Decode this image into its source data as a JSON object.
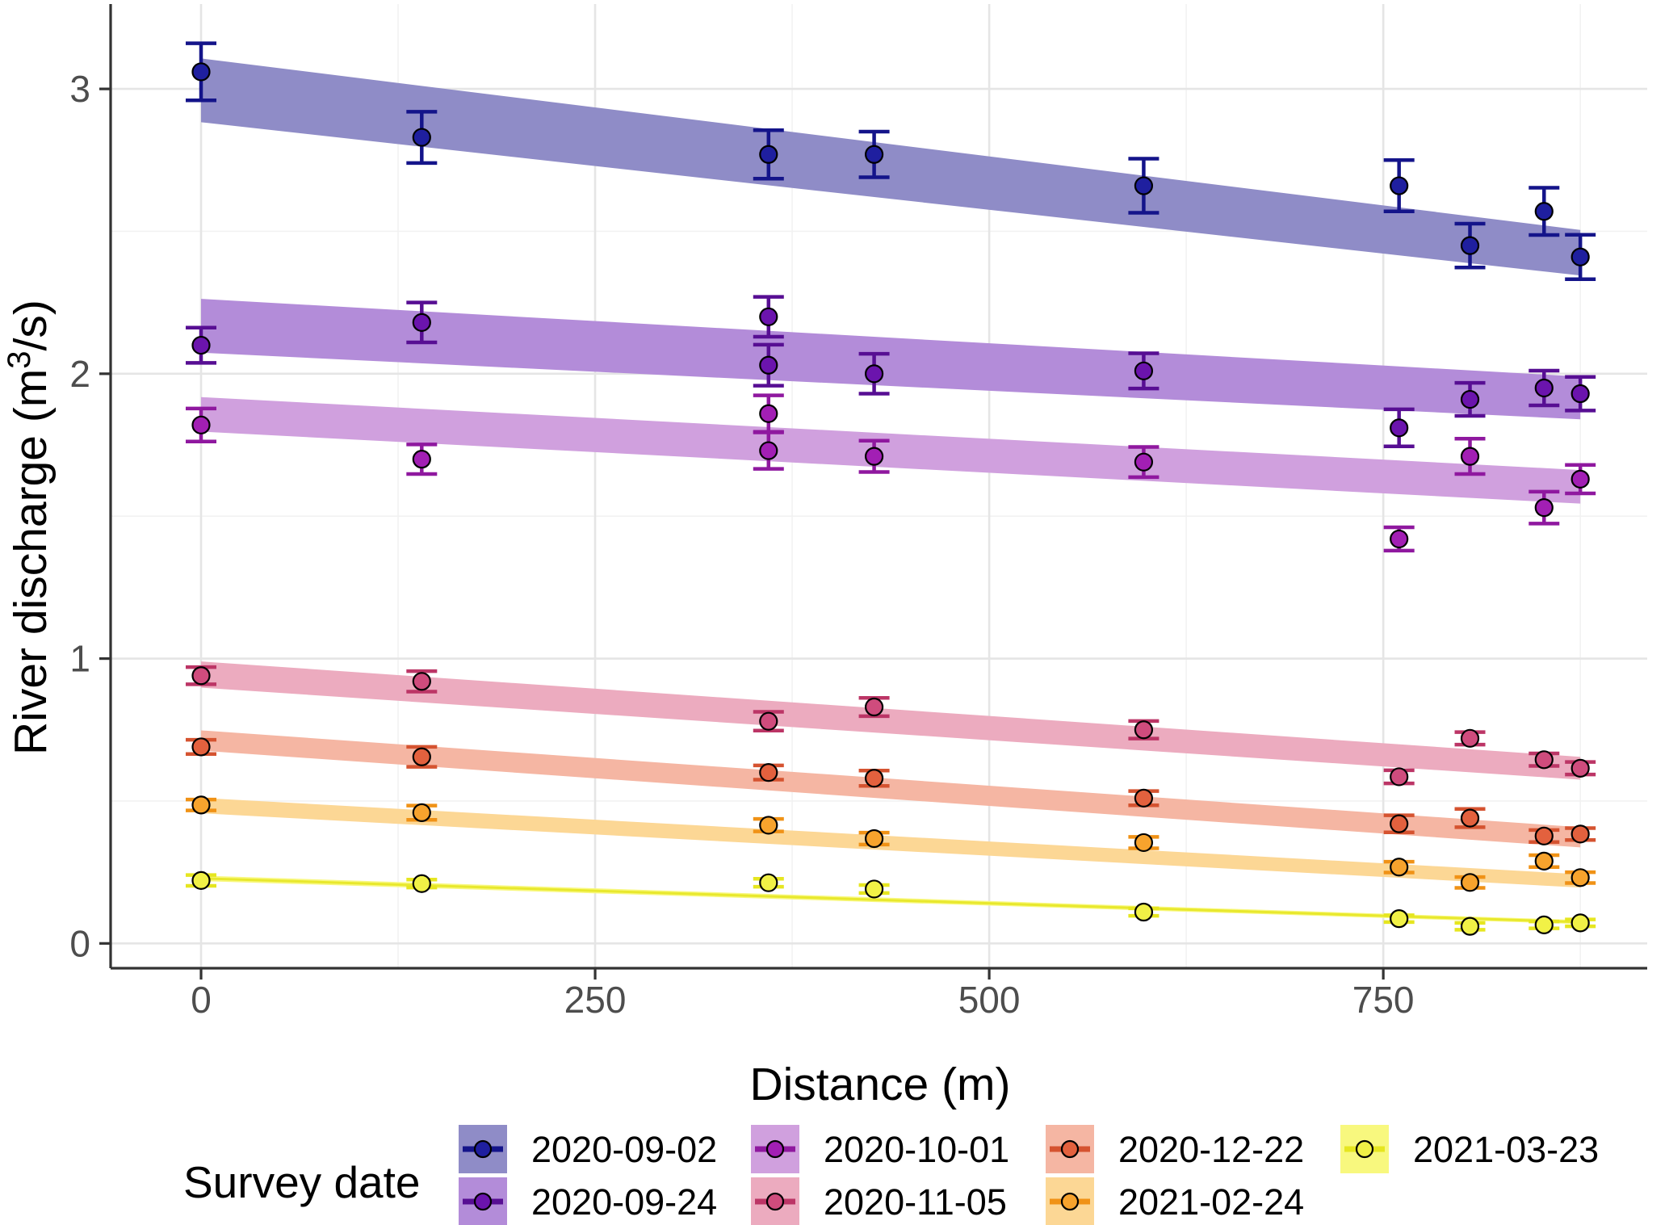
{
  "page": {
    "background": "#ffffff"
  },
  "chart_data": {
    "type": "scatter",
    "title": "",
    "xlabel": "Distance (m)",
    "ylabel": "River discharge (m³/s)",
    "ylabel_parts": {
      "prefix": "River discharge (m",
      "superscript": "3",
      "suffix": "/s)"
    },
    "legend_title": "Survey date",
    "legend_position": "bottom",
    "grid": true,
    "xlim": [
      -57,
      917
    ],
    "ylim": [
      -0.09,
      3.3
    ],
    "x_ticks": [
      "0",
      "250",
      "500",
      "750"
    ],
    "x_tick_values": [
      0,
      250,
      500,
      750
    ],
    "x_minor_values": [
      125,
      375,
      625,
      875
    ],
    "y_ticks": [
      "0",
      "1",
      "2",
      "3"
    ],
    "y_tick_values": [
      0,
      1,
      2,
      3
    ],
    "y_minor_values": [
      0.5,
      1.5,
      2.5
    ],
    "axis_color": "#333333",
    "tick_label_color": "#4d4d4d",
    "grid_major_color": "#e5e5e5",
    "grid_minor_color": "#f2f2f2",
    "series": [
      {
        "name": "2020-09-02",
        "point_color": "#1f1f9f",
        "line_color": "#14148a",
        "band_color": "#8f8cc7",
        "points": [
          {
            "x": 0,
            "y": 3.06,
            "err": 0.1
          },
          {
            "x": 140,
            "y": 2.83,
            "err": 0.09
          },
          {
            "x": 360,
            "y": 2.77,
            "err": 0.085
          },
          {
            "x": 427,
            "y": 2.77,
            "err": 0.08
          },
          {
            "x": 598,
            "y": 2.66,
            "err": 0.095
          },
          {
            "x": 760,
            "y": 2.66,
            "err": 0.09
          },
          {
            "x": 805,
            "y": 2.45,
            "err": 0.077
          },
          {
            "x": 852,
            "y": 2.57,
            "err": 0.083
          },
          {
            "x": 875,
            "y": 2.41,
            "err": 0.078
          }
        ],
        "trend": {
          "x": [
            0,
            875
          ],
          "upper": [
            3.107,
            2.505
          ],
          "lower": [
            2.883,
            2.345
          ]
        }
      },
      {
        "name": "2020-09-24",
        "point_color": "#6b14ad",
        "line_color": "#570e93",
        "band_color": "#b38cd9",
        "points": [
          {
            "x": 0,
            "y": 2.1,
            "err": 0.062
          },
          {
            "x": 140,
            "y": 2.18,
            "err": 0.07
          },
          {
            "x": 360,
            "y": 2.2,
            "err": 0.07
          },
          {
            "x": 360,
            "y": 2.03,
            "err": 0.072
          },
          {
            "x": 427,
            "y": 2.0,
            "err": 0.07
          },
          {
            "x": 598,
            "y": 2.01,
            "err": 0.062
          },
          {
            "x": 760,
            "y": 1.81,
            "err": 0.065
          },
          {
            "x": 805,
            "y": 1.91,
            "err": 0.058
          },
          {
            "x": 852,
            "y": 1.95,
            "err": 0.061
          },
          {
            "x": 875,
            "y": 1.93,
            "err": 0.059
          }
        ],
        "trend": {
          "x": [
            0,
            875
          ],
          "upper": [
            2.263,
            1.99
          ],
          "lower": [
            2.074,
            1.84
          ]
        }
      },
      {
        "name": "2020-10-01",
        "point_color": "#a21fb4",
        "line_color": "#8f189f",
        "band_color": "#d0a0de",
        "points": [
          {
            "x": 0,
            "y": 1.82,
            "err": 0.058
          },
          {
            "x": 140,
            "y": 1.7,
            "err": 0.052
          },
          {
            "x": 360,
            "y": 1.86,
            "err": 0.064
          },
          {
            "x": 360,
            "y": 1.73,
            "err": 0.064
          },
          {
            "x": 427,
            "y": 1.71,
            "err": 0.055
          },
          {
            "x": 598,
            "y": 1.69,
            "err": 0.053
          },
          {
            "x": 760,
            "y": 1.42,
            "err": 0.041
          },
          {
            "x": 805,
            "y": 1.71,
            "err": 0.062
          },
          {
            "x": 852,
            "y": 1.53,
            "err": 0.056
          },
          {
            "x": 875,
            "y": 1.63,
            "err": 0.05
          }
        ],
        "trend": {
          "x": [
            0,
            875
          ],
          "upper": [
            1.918,
            1.662
          ],
          "lower": [
            1.797,
            1.544
          ]
        }
      },
      {
        "name": "2020-11-05",
        "point_color": "#cf4c7d",
        "line_color": "#bc3566",
        "band_color": "#ecabbf",
        "points": [
          {
            "x": 0,
            "y": 0.94,
            "err": 0.03
          },
          {
            "x": 140,
            "y": 0.92,
            "err": 0.036
          },
          {
            "x": 360,
            "y": 0.78,
            "err": 0.033
          },
          {
            "x": 427,
            "y": 0.83,
            "err": 0.032
          },
          {
            "x": 598,
            "y": 0.75,
            "err": 0.031
          },
          {
            "x": 760,
            "y": 0.585,
            "err": 0.023
          },
          {
            "x": 805,
            "y": 0.72,
            "err": 0.022
          },
          {
            "x": 852,
            "y": 0.645,
            "err": 0.022
          },
          {
            "x": 875,
            "y": 0.615,
            "err": 0.022
          }
        ],
        "trend": {
          "x": [
            0,
            875
          ],
          "upper": [
            0.99,
            0.655
          ],
          "lower": [
            0.898,
            0.575
          ]
        }
      },
      {
        "name": "2020-12-22",
        "point_color": "#e3613e",
        "line_color": "#d55330",
        "band_color": "#f5b6a3",
        "points": [
          {
            "x": 0,
            "y": 0.69,
            "err": 0.025
          },
          {
            "x": 140,
            "y": 0.655,
            "err": 0.035
          },
          {
            "x": 360,
            "y": 0.6,
            "err": 0.025
          },
          {
            "x": 427,
            "y": 0.58,
            "err": 0.027
          },
          {
            "x": 598,
            "y": 0.51,
            "err": 0.025
          },
          {
            "x": 760,
            "y": 0.42,
            "err": 0.03
          },
          {
            "x": 805,
            "y": 0.44,
            "err": 0.032
          },
          {
            "x": 852,
            "y": 0.377,
            "err": 0.021
          },
          {
            "x": 875,
            "y": 0.384,
            "err": 0.021
          }
        ],
        "trend": {
          "x": [
            0,
            875
          ],
          "upper": [
            0.748,
            0.408
          ],
          "lower": [
            0.677,
            0.337
          ]
        }
      },
      {
        "name": "2021-02-24",
        "point_color": "#f7a32d",
        "line_color": "#f09216",
        "band_color": "#fcd795",
        "points": [
          {
            "x": 0,
            "y": 0.486,
            "err": 0.019
          },
          {
            "x": 140,
            "y": 0.459,
            "err": 0.025
          },
          {
            "x": 360,
            "y": 0.415,
            "err": 0.022
          },
          {
            "x": 427,
            "y": 0.368,
            "err": 0.021
          },
          {
            "x": 598,
            "y": 0.354,
            "err": 0.02
          },
          {
            "x": 760,
            "y": 0.268,
            "err": 0.019
          },
          {
            "x": 805,
            "y": 0.214,
            "err": 0.019
          },
          {
            "x": 852,
            "y": 0.289,
            "err": 0.021
          },
          {
            "x": 875,
            "y": 0.231,
            "err": 0.019
          }
        ],
        "trend": {
          "x": [
            0,
            875
          ],
          "upper": [
            0.511,
            0.243
          ],
          "lower": [
            0.457,
            0.196
          ]
        }
      },
      {
        "name": "2021-03-23",
        "point_color": "#f1f146",
        "line_color": "#e6e620",
        "band_color": "#f8f87e",
        "points": [
          {
            "x": 0,
            "y": 0.221,
            "err": 0.019
          },
          {
            "x": 140,
            "y": 0.21,
            "err": 0.014
          },
          {
            "x": 360,
            "y": 0.213,
            "err": 0.014
          },
          {
            "x": 427,
            "y": 0.191,
            "err": 0.014
          },
          {
            "x": 598,
            "y": 0.11,
            "err": 0.013
          },
          {
            "x": 760,
            "y": 0.087,
            "err": 0.012
          },
          {
            "x": 805,
            "y": 0.06,
            "err": 0.012
          },
          {
            "x": 852,
            "y": 0.065,
            "err": 0.012
          },
          {
            "x": 875,
            "y": 0.072,
            "err": 0.012
          }
        ],
        "trend": {
          "x": [
            0,
            875
          ],
          "upper": [
            0.238,
            0.082
          ],
          "lower": [
            0.219,
            0.068
          ]
        }
      }
    ],
    "legend": {
      "title": "Survey date",
      "entries": [
        "2020-09-02",
        "2020-09-24",
        "2020-10-01",
        "2020-11-05",
        "2020-12-22",
        "2021-02-24",
        "2021-03-23"
      ]
    }
  }
}
